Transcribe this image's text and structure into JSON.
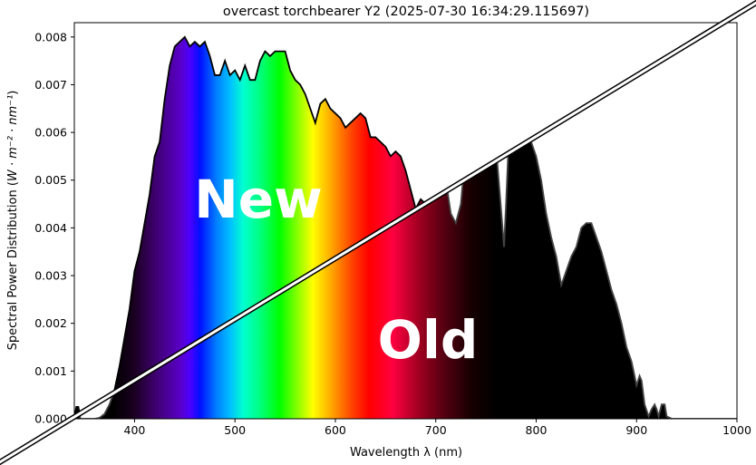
{
  "chart_data": {
    "type": "area",
    "title": "overcast torchbearer Y2 (2025-07-30 16:34:29.115697)",
    "xlabel": "Wavelength λ (nm)",
    "ylabel_main": "Spectral Power Distribution (",
    "ylabel_units": "W · m⁻² · nm⁻¹",
    "ylabel_close": ")",
    "xlim": [
      340,
      1000
    ],
    "ylim": [
      0,
      0.0083
    ],
    "xticks": [
      400,
      500,
      600,
      700,
      800,
      900,
      1000
    ],
    "xtick_labels": [
      "400",
      "500",
      "600",
      "700",
      "800",
      "900",
      "1000"
    ],
    "yticks": [
      0,
      0.001,
      0.002,
      0.003,
      0.004,
      0.005,
      0.006,
      0.007,
      0.008
    ],
    "ytick_labels": [
      "0.000",
      "0.001",
      "0.002",
      "0.003",
      "0.004",
      "0.005",
      "0.006",
      "0.007",
      "0.008"
    ],
    "overlay_labels": {
      "new": "New",
      "old": "Old"
    },
    "new_series": {
      "name": "New",
      "x": [
        340,
        342,
        344,
        346,
        350,
        360,
        365,
        370,
        375,
        380,
        385,
        390,
        395,
        400,
        405,
        410,
        415,
        420,
        425,
        430,
        435,
        440,
        445,
        450,
        455,
        460,
        465,
        470,
        475,
        480,
        485,
        490,
        495,
        500,
        505,
        510,
        515,
        520,
        525,
        530,
        535,
        540,
        545,
        550,
        555,
        560,
        565,
        570,
        575,
        580,
        585,
        590,
        595,
        600,
        605,
        610,
        615,
        620,
        625,
        630,
        635,
        640,
        645,
        650,
        655,
        660,
        665,
        670,
        675,
        680,
        685,
        690
      ],
      "y": [
        0,
        0.00025,
        0.00025,
        0,
        0,
        0,
        2e-05,
        0.0001,
        0.0003,
        0.0006,
        0.0011,
        0.0017,
        0.0023,
        0.0031,
        0.0035,
        0.0041,
        0.0047,
        0.0055,
        0.0058,
        0.0067,
        0.0074,
        0.0078,
        0.0079,
        0.008,
        0.0078,
        0.0079,
        0.0078,
        0.0079,
        0.0076,
        0.0072,
        0.0072,
        0.0075,
        0.0072,
        0.0073,
        0.0071,
        0.0074,
        0.0071,
        0.0071,
        0.0075,
        0.0077,
        0.0076,
        0.0077,
        0.0077,
        0.0077,
        0.0073,
        0.0071,
        0.007,
        0.0068,
        0.0065,
        0.0062,
        0.0066,
        0.0067,
        0.0065,
        0.0064,
        0.0063,
        0.0061,
        0.0062,
        0.0063,
        0.0064,
        0.0063,
        0.0059,
        0.0059,
        0.0058,
        0.0057,
        0.0055,
        0.0056,
        0.0055,
        0.0052,
        0.0048,
        0.0044,
        0.0046,
        0.0045
      ]
    },
    "old_series": {
      "name": "Old",
      "x": [
        340,
        342,
        344,
        346,
        350,
        360,
        365,
        370,
        375,
        380,
        385,
        390,
        395,
        400,
        405,
        410,
        415,
        420,
        425,
        430,
        435,
        440,
        445,
        450,
        455,
        460,
        465,
        470,
        475,
        480,
        485,
        490,
        495,
        500,
        505,
        510,
        515,
        520,
        525,
        530,
        535,
        540,
        545,
        550,
        555,
        560,
        565,
        570,
        575,
        580,
        585,
        590,
        595,
        600,
        605,
        610,
        615,
        620,
        625,
        630,
        635,
        640,
        645,
        650,
        655,
        660,
        665,
        670,
        675,
        680,
        685,
        690,
        695,
        700,
        705,
        710,
        715,
        720,
        725,
        730,
        735,
        740,
        745,
        748,
        752,
        755,
        760,
        765,
        768,
        770,
        773,
        777,
        780,
        785,
        790,
        795,
        800,
        805,
        810,
        815,
        820,
        825,
        830,
        835,
        840,
        845,
        850,
        855,
        860,
        865,
        870,
        875,
        880,
        885,
        890,
        895,
        900,
        903,
        905,
        908,
        912,
        915,
        918,
        920,
        922,
        925,
        928,
        930,
        935,
        940,
        950,
        1000
      ],
      "y": [
        0,
        0.00025,
        0.00025,
        0,
        0,
        0,
        2e-05,
        0.0001,
        0.0003,
        0.0006,
        0.0011,
        0.0017,
        0.0023,
        0.0031,
        0.0035,
        0.0041,
        0.0047,
        0.0055,
        0.0058,
        0.0067,
        0.0074,
        0.0078,
        0.0079,
        0.008,
        0.0078,
        0.0079,
        0.0078,
        0.0079,
        0.0076,
        0.0072,
        0.0072,
        0.0075,
        0.0072,
        0.0073,
        0.0071,
        0.0074,
        0.0071,
        0.0071,
        0.0075,
        0.0077,
        0.0076,
        0.0077,
        0.0077,
        0.0077,
        0.0073,
        0.0071,
        0.007,
        0.0068,
        0.0065,
        0.0062,
        0.0066,
        0.0067,
        0.0065,
        0.0064,
        0.0063,
        0.0061,
        0.0062,
        0.0063,
        0.0064,
        0.0063,
        0.0059,
        0.0059,
        0.0058,
        0.0057,
        0.0055,
        0.0056,
        0.0055,
        0.0052,
        0.0048,
        0.0044,
        0.0046,
        0.0045,
        0.0049,
        0.0052,
        0.0056,
        0.005,
        0.0043,
        0.0041,
        0.0045,
        0.0057,
        0.0068,
        0.0074,
        0.0077,
        0.0078,
        0.0077,
        0.007,
        0.0057,
        0.0044,
        0.0036,
        0.0045,
        0.006,
        0.007,
        0.0071,
        0.0069,
        0.0063,
        0.0058,
        0.0055,
        0.005,
        0.0043,
        0.0038,
        0.0034,
        0.0028,
        0.0031,
        0.0034,
        0.0036,
        0.004,
        0.0041,
        0.0041,
        0.0038,
        0.0035,
        0.0031,
        0.0027,
        0.0024,
        0.002,
        0.0015,
        0.0012,
        0.0007,
        0.0009,
        0.0008,
        0.0003,
        5e-05,
        0.0002,
        0.0003,
        0.0002,
        5e-05,
        0.0003,
        0.0003,
        5e-05,
        0,
        0,
        0,
        0
      ]
    }
  }
}
